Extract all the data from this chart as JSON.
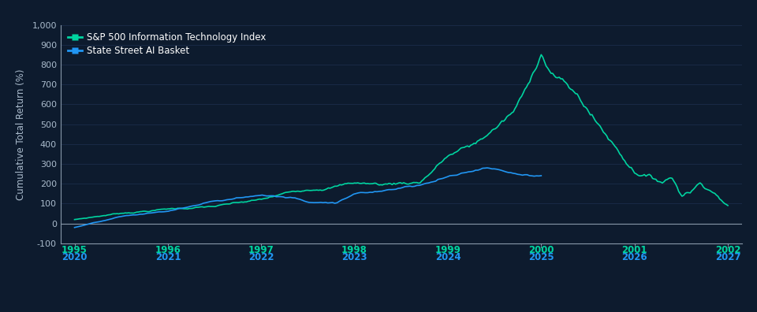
{
  "background_color": "#0d1b2e",
  "sp500_color": "#00d4a0",
  "ai_color": "#2196f3",
  "axis_label_color": "#aabbcc",
  "grid_color": "#1e3050",
  "zero_line_color": "#8899aa",
  "text_color": "#ffffff",
  "top_tick_color": "#00d4a0",
  "bottom_tick_color": "#2196f3",
  "ylabel": "Cumulative Total Return (%)",
  "legend_sp500": "S&P 500 Information Technology Index",
  "legend_ai": "State Street AI Basket",
  "top_labels": [
    "1995",
    "1996",
    "1997",
    "1998",
    "1999",
    "2000",
    "2001",
    "2002"
  ],
  "bottom_labels": [
    "2020",
    "2021",
    "2022",
    "2023",
    "2024",
    "2025",
    "2026",
    "2027"
  ],
  "tick_positions": [
    0,
    1,
    2,
    3,
    4,
    5,
    6,
    7
  ],
  "xlim": [
    -0.15,
    7.15
  ],
  "ylim": [
    -100,
    1000
  ],
  "ytick_vals": [
    -100,
    0,
    100,
    200,
    300,
    400,
    500,
    600,
    700,
    800,
    900,
    1000
  ],
  "ytick_labels": [
    "-100",
    "0",
    "100",
    "200",
    "300",
    "400",
    "500",
    "600",
    "700",
    "800",
    "900",
    "1,000"
  ]
}
